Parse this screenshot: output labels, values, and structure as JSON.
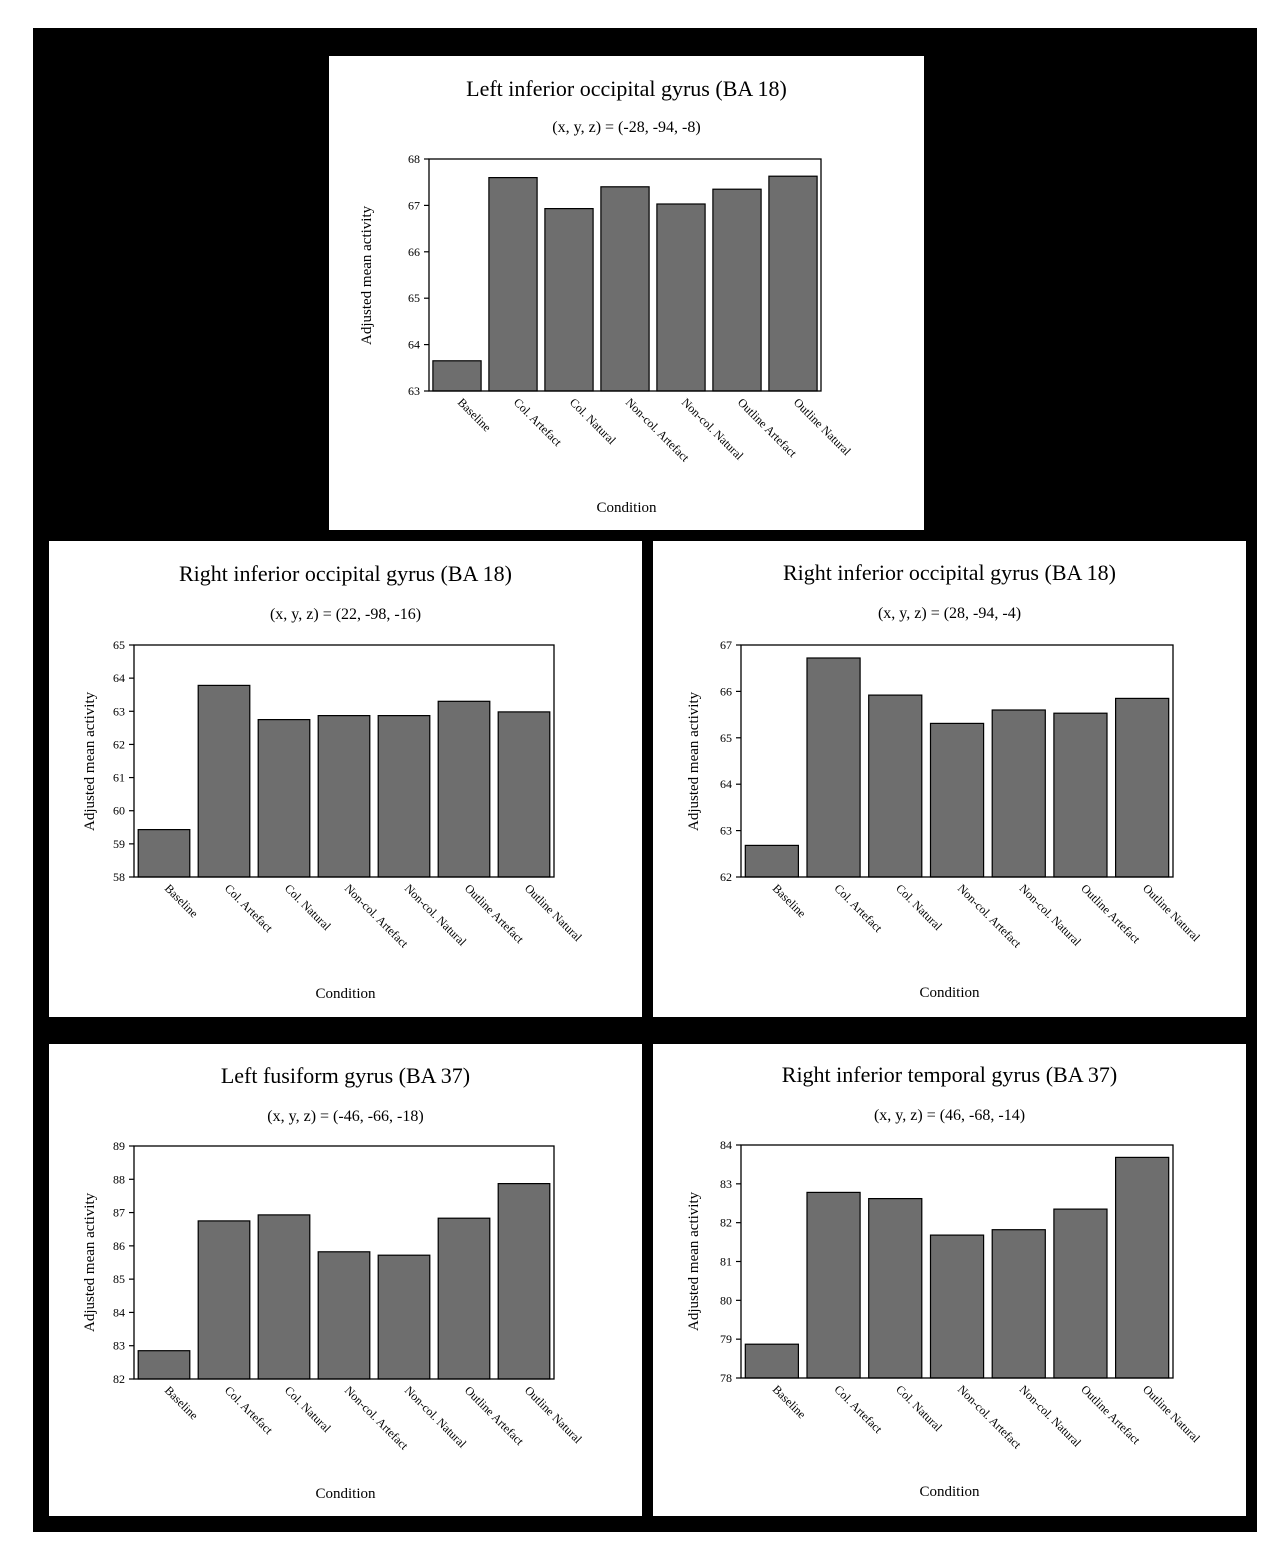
{
  "chart_data": [
    {
      "type": "bar",
      "title": "Left inferior occipital gyrus (BA 18)",
      "subtitle": "(x, y, z) = (-28, -94, -8)",
      "xlabel": "Condition",
      "ylabel": "Adjusted mean activity",
      "categories": [
        "Baseline",
        "Col. Artefact",
        "Col. Natural",
        "Non-col. Artefact",
        "Non-col. Natural",
        "Outline Artefact",
        "Outline Natural"
      ],
      "values": [
        63.65,
        67.6,
        66.93,
        67.4,
        67.03,
        67.35,
        67.63
      ],
      "ylim": [
        63,
        68
      ],
      "yticks": [
        63,
        64,
        65,
        66,
        67,
        68
      ],
      "bar_color": "#6e6e6e",
      "grid": false
    },
    {
      "type": "bar",
      "title": "Right inferior occipital gyrus (BA 18)",
      "subtitle": "(x, y, z) = (22, -98, -16)",
      "xlabel": "Condition",
      "ylabel": "Adjusted mean activity",
      "categories": [
        "Baseline",
        "Col. Artefact",
        "Col. Natural",
        "Non-col. Artefact",
        "Non-col. Natural",
        "Outline Artefact",
        "Outline Natural"
      ],
      "values": [
        59.43,
        63.78,
        62.75,
        62.87,
        62.87,
        63.3,
        62.98
      ],
      "ylim": [
        58,
        65
      ],
      "yticks": [
        58,
        59,
        60,
        61,
        62,
        63,
        64,
        65
      ],
      "bar_color": "#6e6e6e",
      "grid": false
    },
    {
      "type": "bar",
      "title": "Right inferior occipital gyrus (BA 18)",
      "subtitle": "(x, y, z) = (28, -94, -4)",
      "xlabel": "Condition",
      "ylabel": "Adjusted mean activity",
      "categories": [
        "Baseline",
        "Col. Artefact",
        "Col. Natural",
        "Non-col. Artefact",
        "Non-col. Natural",
        "Outline Artefact",
        "Outline Natural"
      ],
      "values": [
        62.68,
        66.72,
        65.92,
        65.31,
        65.6,
        65.53,
        65.85
      ],
      "ylim": [
        62,
        67
      ],
      "yticks": [
        62,
        63,
        64,
        65,
        66,
        67
      ],
      "bar_color": "#6e6e6e",
      "grid": false
    },
    {
      "type": "bar",
      "title": "Left fusiform gyrus (BA 37)",
      "subtitle": "(x, y, z) = (-46, -66, -18)",
      "xlabel": "Condition",
      "ylabel": "Adjusted mean activity",
      "categories": [
        "Baseline",
        "Col. Artefact",
        "Col. Natural",
        "Non-col. Artefact",
        "Non-col. Natural",
        "Outline Artefact",
        "Outline Natural"
      ],
      "values": [
        82.85,
        86.75,
        86.93,
        85.82,
        85.72,
        86.83,
        87.87
      ],
      "ylim": [
        82,
        89
      ],
      "yticks": [
        82,
        83,
        84,
        85,
        86,
        87,
        88,
        89
      ],
      "bar_color": "#6e6e6e",
      "grid": false
    },
    {
      "type": "bar",
      "title": "Right inferior temporal gyrus (BA 37)",
      "subtitle": "(x, y, z) = (46, -68, -14)",
      "xlabel": "Condition",
      "ylabel": "Adjusted mean activity",
      "categories": [
        "Baseline",
        "Col. Artefact",
        "Col. Natural",
        "Non-col. Artefact",
        "Non-col. Natural",
        "Outline Artefact",
        "Outline Natural"
      ],
      "values": [
        78.87,
        82.78,
        82.62,
        81.68,
        81.82,
        82.35,
        83.68
      ],
      "ylim": [
        78,
        84
      ],
      "yticks": [
        78,
        79,
        80,
        81,
        82,
        83,
        84
      ],
      "bar_color": "#6e6e6e",
      "grid": false
    }
  ]
}
